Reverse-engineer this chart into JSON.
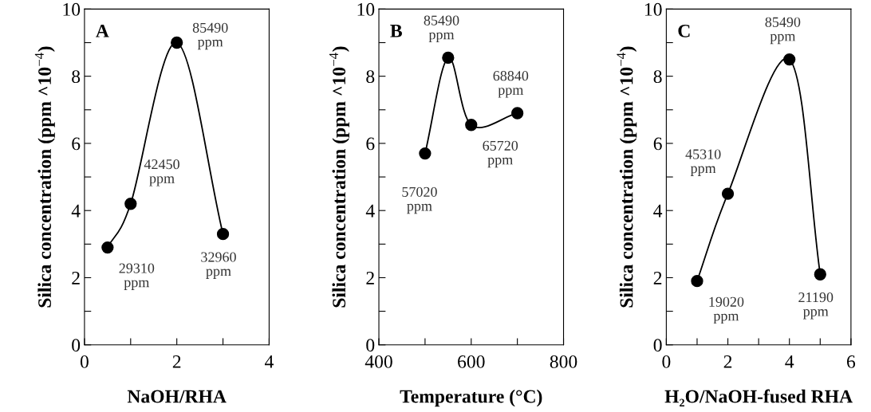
{
  "chart_data": [
    {
      "type": "line",
      "x": [
        0.5,
        1,
        2,
        3
      ],
      "values": [
        2.9,
        4.2,
        9.0,
        3.3
      ],
      "color": "#000000",
      "marker": "circle",
      "line_style": "solid",
      "grid": false,
      "xlabel": "NaOH/RHA",
      "ylabel": "Silica concentration (ppm ^10$^{−4}$)",
      "xlim": [
        0,
        4
      ],
      "ylim": [
        0,
        10
      ],
      "xticks": [
        0,
        {
          "value": 1,
          "label": null
        },
        2,
        {
          "value": 3,
          "label": null
        },
        4
      ],
      "yticks": [
        0,
        {
          "value": 1,
          "label": null
        },
        2,
        {
          "value": 3,
          "label": null
        },
        4,
        {
          "value": 5,
          "label": null
        },
        6,
        {
          "value": 7,
          "label": null
        },
        8,
        {
          "value": 9,
          "label": null
        },
        10
      ],
      "annotations": [
        "A",
        {
          "text": "29310\nppm",
          "x": 0.5,
          "y": 2.9
        },
        {
          "text": "42450\nppm",
          "x": 1,
          "y": 4.2
        },
        {
          "text": "85490\nppm",
          "x": 2,
          "y": 9.0
        },
        {
          "text": "32960\nppm",
          "x": 3,
          "y": 3.3
        }
      ]
    },
    {
      "type": "line",
      "x": [
        500,
        550,
        600,
        700
      ],
      "values": [
        5.7,
        8.55,
        6.55,
        6.9
      ],
      "color": "#000000",
      "marker": "circle",
      "line_style": "solid",
      "grid": false,
      "xlabel": "Temperature (°C)",
      "ylabel": "Silica concentration (ppm ^10$^{−4}$)",
      "xlim": [
        400,
        800
      ],
      "ylim": [
        0,
        10
      ],
      "xticks": [
        400,
        {
          "value": 500,
          "label": null
        },
        600,
        {
          "value": 700,
          "label": null
        },
        800
      ],
      "yticks": [
        0,
        {
          "value": 1,
          "label": null
        },
        2,
        {
          "value": 3,
          "label": null
        },
        4,
        {
          "value": 5,
          "label": null
        },
        6,
        {
          "value": 7,
          "label": null
        },
        8,
        {
          "value": 9,
          "label": null
        },
        10
      ],
      "annotations": [
        "B",
        {
          "text": "57020\nppm",
          "x": 500,
          "y": 5.7
        },
        {
          "text": "85490\nppm",
          "x": 550,
          "y": 8.55
        },
        {
          "text": "65720\nppm",
          "x": 600,
          "y": 6.55
        },
        {
          "text": "68840\nppm",
          "x": 700,
          "y": 6.9
        }
      ]
    },
    {
      "type": "line",
      "x": [
        1,
        2,
        4,
        5
      ],
      "values": [
        1.9,
        4.5,
        8.5,
        2.1
      ],
      "color": "#000000",
      "marker": "circle",
      "line_style": "solid",
      "grid": false,
      "xlabel": "H₂O/NaOH-fused RHA",
      "ylabel": "Silica concentration (ppm ^10$^{−4}$)",
      "xlim": [
        0,
        6
      ],
      "ylim": [
        0,
        10
      ],
      "xticks": [
        0,
        {
          "value": 1,
          "label": null
        },
        2,
        {
          "value": 3,
          "label": null
        },
        4,
        {
          "value": 5,
          "label": null
        },
        6
      ],
      "yticks": [
        0,
        {
          "value": 1,
          "label": null
        },
        2,
        {
          "value": 3,
          "label": null
        },
        4,
        {
          "value": 5,
          "label": null
        },
        6,
        {
          "value": 7,
          "label": null
        },
        8,
        {
          "value": 9,
          "label": null
        },
        10
      ],
      "annotations": [
        "C",
        {
          "text": "19020\nppm",
          "x": 1,
          "y": 1.9
        },
        {
          "text": "45310\nppm",
          "x": 2,
          "y": 4.5
        },
        {
          "text": "85490\nppm",
          "x": 4,
          "y": 8.5
        },
        {
          "text": "21190\nppm",
          "x": 5,
          "y": 2.1
        }
      ]
    }
  ]
}
